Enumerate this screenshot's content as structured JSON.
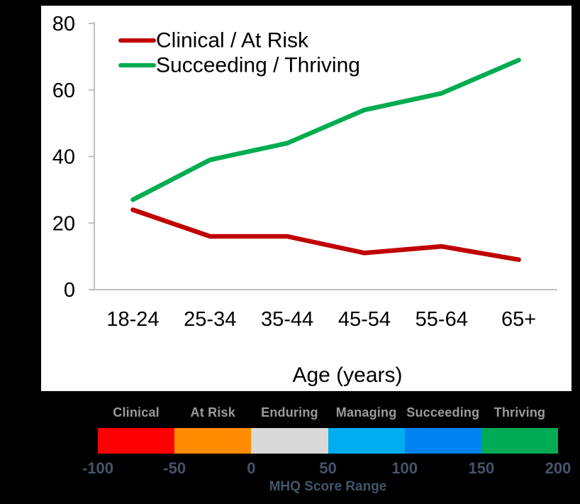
{
  "page": {
    "background": "#000000",
    "panel_background": "#ffffff"
  },
  "chart_data": {
    "type": "line",
    "categories": [
      "18-24",
      "25-34",
      "35-44",
      "45-54",
      "55-64",
      "65+"
    ],
    "series": [
      {
        "name": "Clinical / At Risk",
        "color": "#C00000",
        "values": [
          24,
          16,
          16,
          11,
          13,
          9
        ]
      },
      {
        "name": "Succeeding / Thriving",
        "color": "#00AC50",
        "values": [
          27,
          39,
          44,
          54,
          59,
          69
        ]
      }
    ],
    "title": "",
    "xlabel": "Age (years)",
    "ylabel": "",
    "ylim": [
      0,
      80
    ],
    "yticks": [
      0,
      20,
      40,
      60,
      80
    ],
    "grid": false,
    "legend_position": "top-left-inside",
    "axis_color": "#C0C0C0",
    "text_color": "#000000"
  },
  "score_scale": {
    "caption": "MHQ Score Range",
    "caption_color": "#44546A",
    "label_color": "#9B9B9B",
    "tick_color": "#44546A",
    "segments": [
      {
        "label": "Clinical",
        "color": "#FF0000"
      },
      {
        "label": "At Risk",
        "color": "#FF8C00"
      },
      {
        "label": "Enduring",
        "color": "#D9D9D9"
      },
      {
        "label": "Managing",
        "color": "#00AEEF"
      },
      {
        "label": "Succeeding",
        "color": "#0082F0"
      },
      {
        "label": "Thriving",
        "color": "#00AB55"
      }
    ],
    "tick_labels": [
      "-100",
      "-50",
      "0",
      "50",
      "100",
      "150",
      "200"
    ]
  }
}
